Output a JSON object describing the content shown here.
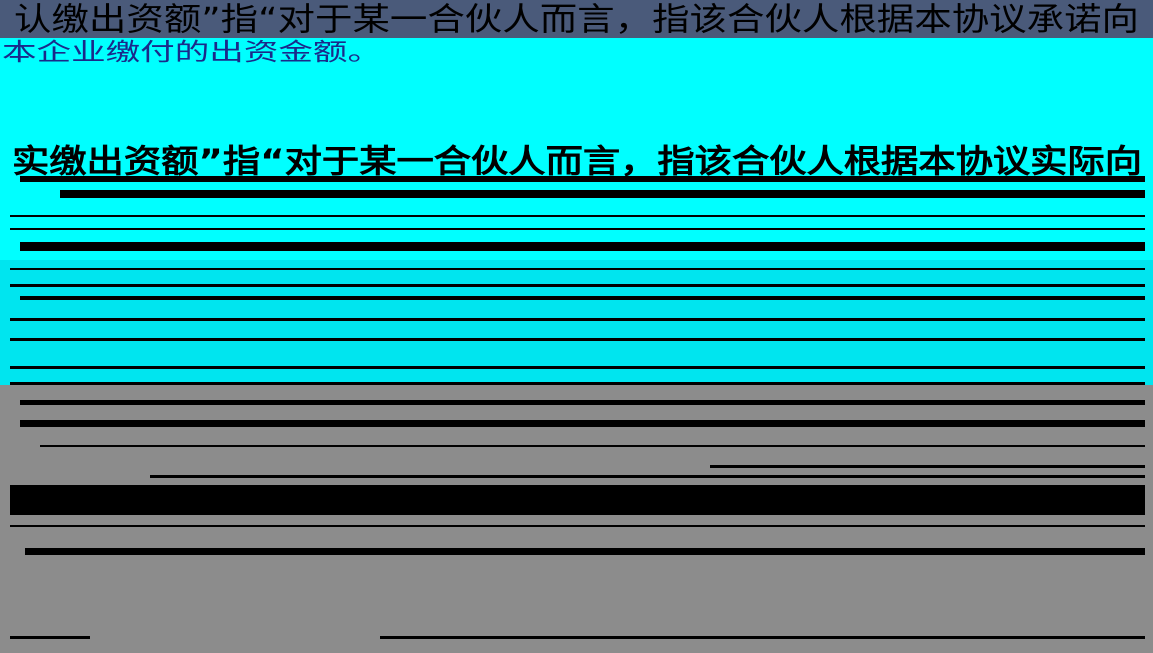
{
  "paragraphs": [
    {
      "lines": [
        "认缴出资额”指“对于某一合伙人而言，指该合伙人根据本协议承诺向",
        "本企业缴付的出资金额。"
      ]
    },
    {
      "lines": [
        "实缴出资额”指“对于某一合伙人而言，指该合伙人根据本协议实际向"
      ]
    }
  ]
}
